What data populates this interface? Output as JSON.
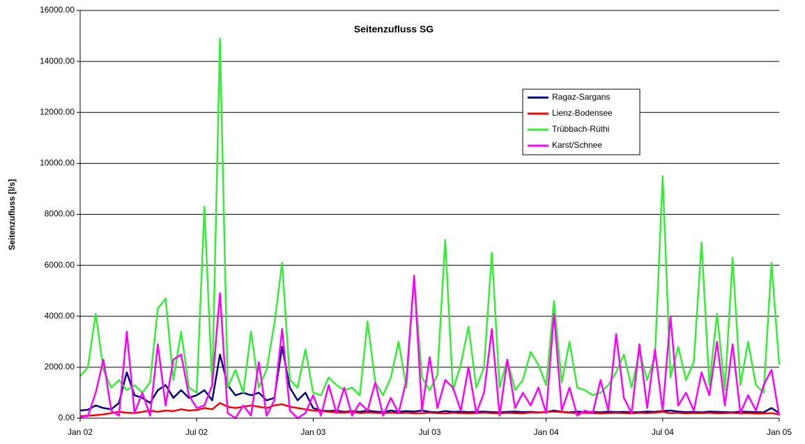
{
  "chart_data": {
    "type": "line",
    "title": "Seitenzufluss SG",
    "y_label": "Seitenzufluss [l/s]",
    "x": [
      0,
      0.4,
      0.8,
      1.2,
      1.6,
      2.0,
      2.4,
      2.8,
      3.2,
      3.6,
      4.0,
      4.4,
      4.8,
      5.2,
      5.6,
      6.0,
      6.4,
      6.8,
      7.2,
      7.6,
      8.0,
      8.4,
      8.8,
      9.2,
      9.6,
      10.0,
      10.4,
      10.8,
      11.2,
      11.6,
      12.0,
      12.4,
      12.8,
      13.2,
      13.6,
      14.0,
      14.4,
      14.8,
      15.2,
      15.6,
      16.0,
      16.4,
      16.8,
      17.2,
      17.6,
      18.0,
      18.4,
      18.8,
      19.2,
      19.6,
      20.0,
      20.4,
      20.8,
      21.2,
      21.6,
      22.0,
      22.4,
      22.8,
      23.2,
      23.6,
      24.0,
      24.4,
      24.8,
      25.2,
      25.6,
      26.0,
      26.4,
      26.8,
      27.2,
      27.6,
      28.0,
      28.4,
      28.8,
      29.2,
      29.6,
      30.0,
      30.4,
      30.8,
      31.2,
      31.6,
      32.0,
      32.4,
      32.8,
      33.2,
      33.6,
      34.0,
      34.4,
      34.8,
      35.2,
      35.6,
      36.0
    ],
    "xlim": [
      0,
      36
    ],
    "xticks": [
      {
        "value": 0,
        "label": "Jan 02"
      },
      {
        "value": 6,
        "label": "Jul 02"
      },
      {
        "value": 12,
        "label": "Jan 03"
      },
      {
        "value": 18,
        "label": "Jul 03"
      },
      {
        "value": 24,
        "label": "Jan 04"
      },
      {
        "value": 30,
        "label": "Jul 04"
      },
      {
        "value": 36,
        "label": "Jan 05"
      }
    ],
    "ylim": [
      0,
      16000
    ],
    "yticks": [
      {
        "value": 0,
        "label": "0.00"
      },
      {
        "value": 2000,
        "label": "2000.00"
      },
      {
        "value": 4000,
        "label": "4000.00"
      },
      {
        "value": 6000,
        "label": "6000.00"
      },
      {
        "value": 8000,
        "label": "8000.00"
      },
      {
        "value": 10000,
        "label": "10000.00"
      },
      {
        "value": 12000,
        "label": "12000.00"
      },
      {
        "value": 14000,
        "label": "14000.00"
      },
      {
        "value": 16000,
        "label": "16000.00"
      }
    ],
    "grid": true,
    "series": [
      {
        "name": "Ragaz-Sargans",
        "color": "#000080",
        "values": [
          300,
          330,
          500,
          400,
          350,
          600,
          1800,
          900,
          800,
          600,
          1100,
          1300,
          800,
          1100,
          800,
          900,
          1100,
          700,
          2500,
          1300,
          900,
          1000,
          900,
          1000,
          700,
          800,
          2800,
          1200,
          700,
          1000,
          400,
          300,
          280,
          300,
          250,
          280,
          250,
          300,
          260,
          240,
          300,
          250,
          280,
          260,
          300,
          250,
          230,
          280,
          250,
          260,
          240,
          250,
          260,
          240,
          230,
          250,
          260,
          240,
          250,
          230,
          240,
          300,
          250,
          230,
          260,
          240,
          250,
          230,
          260,
          240,
          250,
          230,
          240,
          260,
          250,
          280,
          300,
          260,
          240,
          250,
          230,
          260,
          250,
          240,
          230,
          260,
          250,
          240,
          230,
          400,
          200
        ]
      },
      {
        "name": "Lienz-Bodensee",
        "color": "#ff0000",
        "values": [
          80,
          100,
          120,
          150,
          200,
          250,
          220,
          200,
          250,
          300,
          250,
          300,
          280,
          350,
          300,
          320,
          400,
          350,
          600,
          450,
          400,
          450,
          500,
          450,
          400,
          500,
          550,
          450,
          400,
          350,
          300,
          280,
          250,
          230,
          220,
          250,
          200,
          230,
          210,
          200,
          220,
          200,
          210,
          190,
          200,
          220,
          200,
          190,
          210,
          200,
          190,
          200,
          220,
          200,
          190,
          210,
          200,
          190,
          230,
          220,
          250,
          260,
          240,
          220,
          200,
          210,
          200,
          190,
          200,
          210,
          200,
          190,
          210,
          200,
          220,
          250,
          200,
          210,
          190,
          200,
          200,
          210,
          190,
          200,
          210,
          190,
          200,
          180,
          190,
          200,
          150
        ]
      },
      {
        "name": "Trübbach-Rüthi",
        "color": "#33ee33",
        "values": [
          1650,
          2000,
          4100,
          1900,
          1200,
          1500,
          1100,
          1300,
          1000,
          1400,
          4300,
          4700,
          1500,
          3400,
          1200,
          1000,
          8300,
          1200,
          14900,
          1200,
          1900,
          1000,
          3400,
          1200,
          1900,
          3700,
          6100,
          1500,
          1200,
          2700,
          1000,
          900,
          1600,
          1300,
          1100,
          1200,
          900,
          3800,
          1400,
          900,
          1600,
          3000,
          1200,
          5500,
          1600,
          1100,
          1700,
          7000,
          1100,
          2100,
          3600,
          1200,
          2000,
          6500,
          1200,
          2300,
          1100,
          1500,
          2600,
          2100,
          1300,
          4600,
          1400,
          3000,
          1200,
          1100,
          900,
          1000,
          1300,
          1800,
          2500,
          1200,
          2600,
          1500,
          2400,
          9500,
          1600,
          2800,
          1500,
          2200,
          6900,
          1300,
          4100,
          1100,
          6300,
          1300,
          3000,
          1300,
          1000,
          6100,
          2100
        ]
      },
      {
        "name": "Karst/Schnee",
        "color": "#ff00ff",
        "values": [
          50,
          80,
          1000,
          2300,
          300,
          100,
          3400,
          200,
          1000,
          100,
          2900,
          500,
          2300,
          2500,
          900,
          400,
          500,
          1300,
          4900,
          200,
          0,
          500,
          100,
          2200,
          100,
          700,
          3500,
          300,
          0,
          200,
          900,
          100,
          1300,
          200,
          1200,
          100,
          600,
          300,
          1400,
          100,
          800,
          200,
          1500,
          5600,
          300,
          2400,
          400,
          1500,
          1200,
          300,
          2000,
          200,
          1000,
          3500,
          100,
          2300,
          400,
          1000,
          500,
          1200,
          200,
          4100,
          300,
          1200,
          100,
          300,
          200,
          1500,
          300,
          3300,
          800,
          200,
          2900,
          400,
          2700,
          300,
          4000,
          500,
          1000,
          300,
          1800,
          900,
          3000,
          500,
          2900,
          200,
          900,
          300,
          1300,
          1900,
          100
        ]
      }
    ]
  }
}
